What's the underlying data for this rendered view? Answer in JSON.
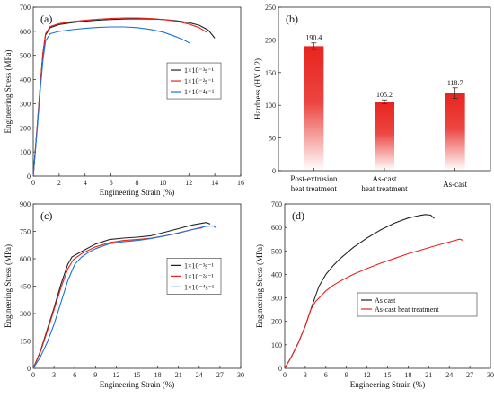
{
  "colors": {
    "black": "#222222",
    "red": "#e8241f",
    "blue": "#1a73d8",
    "bar_red": "#e8241f"
  },
  "chart_data": [
    {
      "panel": "(a)",
      "type": "line",
      "xlabel": "Engineering Strain (%)",
      "ylabel": "Engineering Stress (MPa)",
      "xlim": [
        0,
        16
      ],
      "ylim": [
        0,
        700
      ],
      "xticks": [
        "0",
        "2",
        "4",
        "6",
        "8",
        "10",
        "12",
        "14",
        "16"
      ],
      "yticks": [
        "0",
        "100",
        "200",
        "300",
        "400",
        "500",
        "600",
        "700"
      ],
      "legend": "center-right",
      "series": [
        {
          "name": "1×10⁻³s⁻¹",
          "color": "black",
          "x": [
            0,
            0.3,
            0.55,
            0.75,
            0.95,
            1.3,
            2,
            3,
            4,
            5,
            6,
            7,
            8,
            9,
            10,
            11,
            12,
            12.8,
            13.5,
            14
          ],
          "y": [
            0,
            200,
            380,
            510,
            585,
            615,
            628,
            636,
            642,
            646,
            649,
            651,
            652,
            651,
            649,
            644,
            636,
            625,
            605,
            572
          ]
        },
        {
          "name": "1×10⁻²s⁻¹",
          "color": "red",
          "x": [
            0,
            0.3,
            0.55,
            0.75,
            0.95,
            1.3,
            2,
            3,
            4,
            5,
            6,
            7,
            8,
            9,
            10,
            11,
            12,
            12.8,
            13.4
          ],
          "y": [
            0,
            200,
            380,
            510,
            590,
            620,
            632,
            640,
            646,
            650,
            653,
            655,
            655,
            653,
            649,
            642,
            630,
            615,
            595
          ]
        },
        {
          "name": "1×10⁻⁴s⁻¹",
          "color": "blue",
          "x": [
            0,
            0.3,
            0.55,
            0.75,
            0.95,
            1.3,
            2,
            3,
            4,
            5,
            6,
            7,
            8,
            9,
            10,
            11,
            11.7,
            12.1
          ],
          "y": [
            0,
            190,
            360,
            480,
            560,
            590,
            600,
            607,
            612,
            616,
            618,
            618,
            615,
            608,
            597,
            578,
            562,
            550
          ]
        }
      ]
    },
    {
      "panel": "(b)",
      "type": "bar",
      "ylabel": "Hardness (HV 0.2)",
      "ylim": [
        0,
        250
      ],
      "yticks": [
        "0",
        "50",
        "100",
        "150",
        "200",
        "250"
      ],
      "categories": [
        "Post-extrusion heat treatment",
        "As-cast heat treatment",
        "As-cast"
      ],
      "category_lines": [
        [
          "Post-extrusion",
          "heat treatment"
        ],
        [
          "As-cast",
          "heat treatment"
        ],
        [
          "As-cast"
        ]
      ],
      "values": [
        190.4,
        105.2,
        118.7
      ],
      "value_labels": [
        "190.4",
        "105.2",
        "118.7"
      ],
      "errors": [
        5,
        3,
        8
      ]
    },
    {
      "panel": "(c)",
      "type": "line",
      "xlabel": "Engineering Strain (%)",
      "ylabel": "Engineering Stress (MPa)",
      "xlim": [
        0,
        30
      ],
      "ylim": [
        0,
        900
      ],
      "xticks": [
        "0",
        "3",
        "6",
        "9",
        "12",
        "15",
        "18",
        "21",
        "24",
        "27",
        "30"
      ],
      "yticks": [
        "0",
        "150",
        "300",
        "450",
        "600",
        "750",
        "900"
      ],
      "legend": "center-right",
      "series": [
        {
          "name": "1×10⁻³s⁻¹",
          "color": "black",
          "x": [
            0,
            1,
            2,
            3,
            4,
            5,
            5.6,
            7,
            9,
            11,
            13,
            15,
            17,
            19,
            21,
            23,
            25,
            25.6
          ],
          "y": [
            0,
            90,
            210,
            330,
            460,
            570,
            610,
            640,
            680,
            705,
            713,
            718,
            726,
            745,
            765,
            785,
            798,
            790
          ]
        },
        {
          "name": "1×10⁻²s⁻¹",
          "color": "red",
          "x": [
            0,
            1,
            2,
            3,
            4,
            5,
            5.8,
            7,
            9,
            11,
            13,
            15,
            17,
            19,
            21,
            23,
            24.5
          ],
          "y": [
            0,
            85,
            200,
            320,
            440,
            545,
            595,
            628,
            665,
            688,
            700,
            705,
            712,
            725,
            740,
            760,
            770
          ]
        },
        {
          "name": "1×10⁻⁴s⁻¹",
          "color": "blue",
          "x": [
            0,
            1,
            2,
            3,
            4,
            5,
            6,
            7,
            8,
            9,
            11,
            13,
            15,
            17,
            19,
            21,
            23,
            25,
            26,
            26.5
          ],
          "y": [
            0,
            60,
            140,
            240,
            360,
            480,
            570,
            610,
            635,
            655,
            682,
            693,
            700,
            710,
            725,
            742,
            760,
            778,
            780,
            768
          ]
        }
      ]
    },
    {
      "panel": "(d)",
      "type": "line",
      "xlabel": "Engineering Strain (%)",
      "ylabel": "Engineering Stress (MPa)",
      "xlim": [
        0,
        30
      ],
      "ylim": [
        0,
        700
      ],
      "xticks": [
        "0",
        "3",
        "6",
        "9",
        "12",
        "15",
        "18",
        "21",
        "24",
        "27",
        "30"
      ],
      "yticks": [
        "0",
        "100",
        "200",
        "300",
        "400",
        "500",
        "600",
        "700"
      ],
      "legend": "lower-right",
      "series": [
        {
          "name": "As cast",
          "color": "black",
          "x": [
            0,
            1,
            2,
            3,
            3.8,
            4.5,
            5,
            6,
            7,
            8,
            10,
            12,
            14,
            16,
            18,
            19.5,
            20.5,
            21.3,
            21.8
          ],
          "y": [
            0,
            50,
            110,
            180,
            250,
            310,
            350,
            400,
            435,
            465,
            515,
            555,
            590,
            618,
            640,
            650,
            655,
            652,
            638
          ]
        },
        {
          "name": "As-cast heat treatment",
          "color": "red",
          "x": [
            0,
            1,
            2,
            3,
            3.8,
            4.5,
            5,
            6,
            7,
            8,
            10,
            12,
            14,
            16,
            18,
            20,
            22,
            24,
            25.5,
            26
          ],
          "y": [
            0,
            50,
            110,
            180,
            250,
            285,
            300,
            330,
            352,
            370,
            400,
            425,
            448,
            468,
            488,
            505,
            522,
            538,
            550,
            545
          ]
        }
      ]
    }
  ]
}
